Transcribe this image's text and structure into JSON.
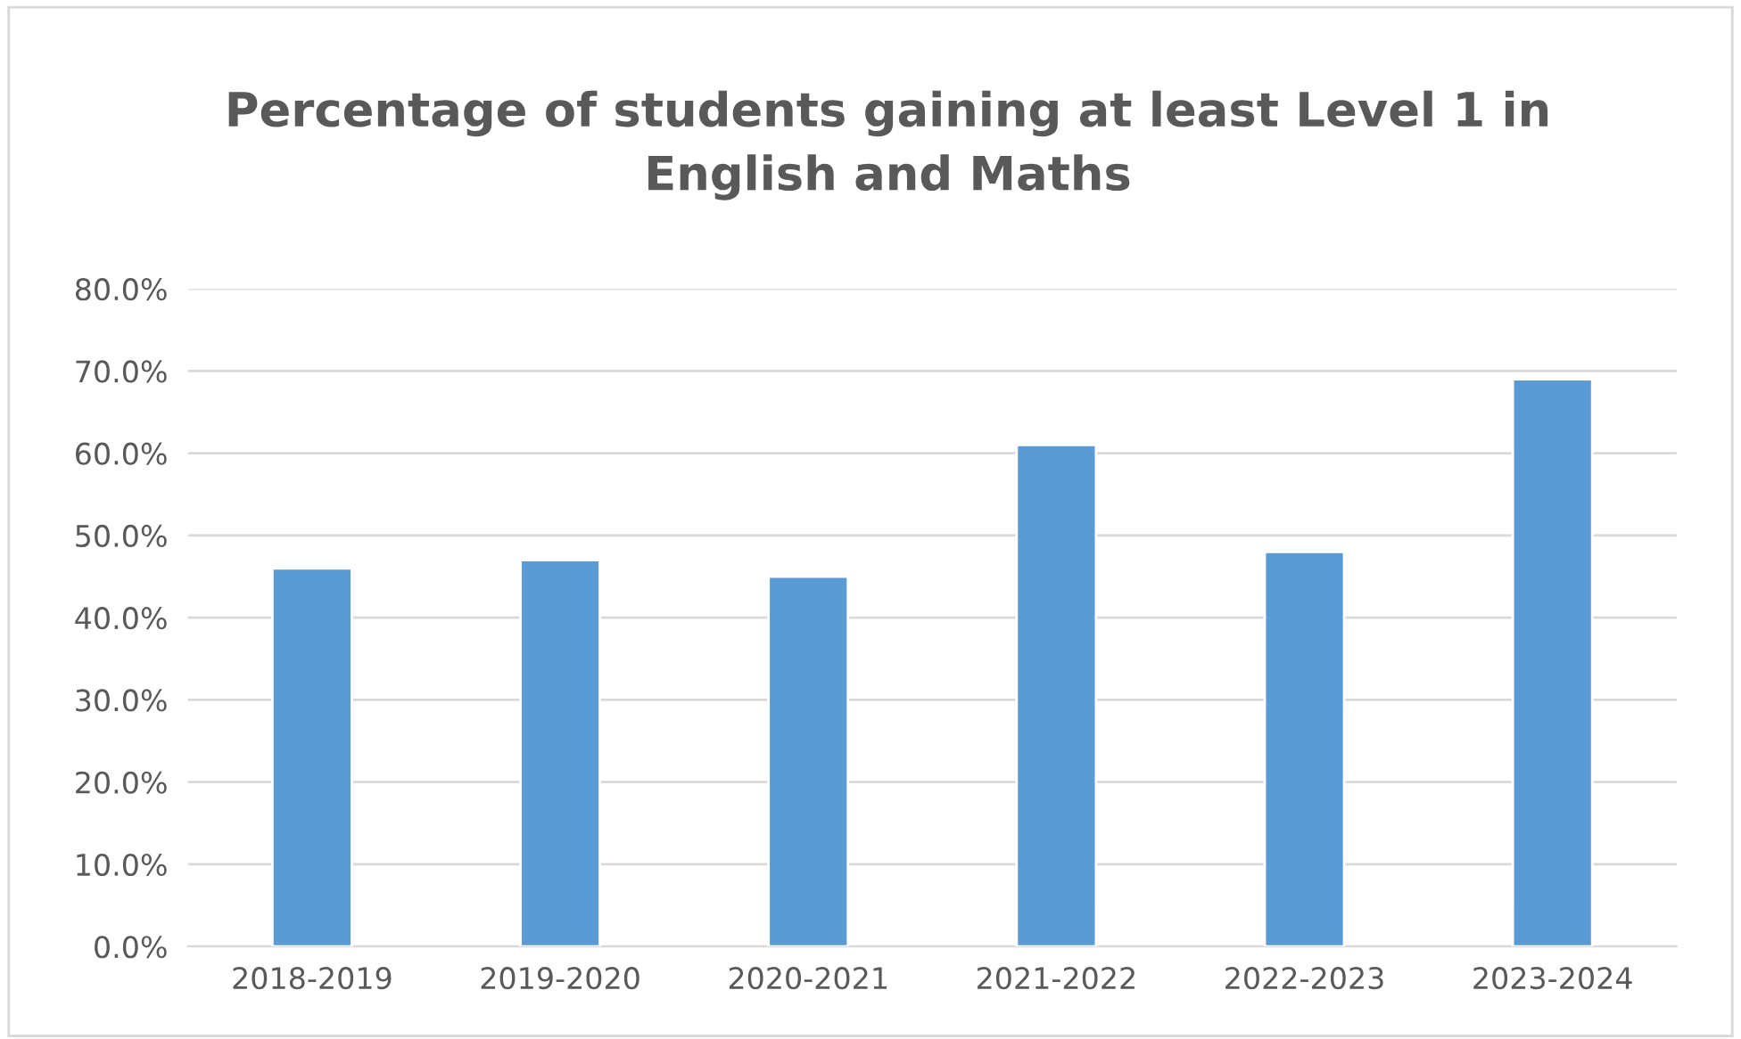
{
  "chart_data": {
    "type": "bar",
    "title": "Percentage of students gaining at least Level 1 in\nEnglish and Maths",
    "categories": [
      "2018-2019",
      "2019-2020",
      "2020-2021",
      "2021-2022",
      "2022-2023",
      "2023-2024"
    ],
    "values": [
      46,
      47,
      45,
      61,
      48,
      69
    ],
    "color": "#5b9bd5",
    "ylim": [
      0,
      80
    ],
    "yticks": [
      {
        "value": 0,
        "label": "0.0%"
      },
      {
        "value": 10,
        "label": "10.0%"
      },
      {
        "value": 20,
        "label": "20.0%"
      },
      {
        "value": 30,
        "label": "30.0%"
      },
      {
        "value": 40,
        "label": "40.0%"
      },
      {
        "value": 50,
        "label": "50.0%"
      },
      {
        "value": 60,
        "label": "60.0%"
      },
      {
        "value": 70,
        "label": "70.0%"
      },
      {
        "value": 80,
        "label": "80.0%"
      }
    ],
    "grid": "y",
    "legend": false
  }
}
